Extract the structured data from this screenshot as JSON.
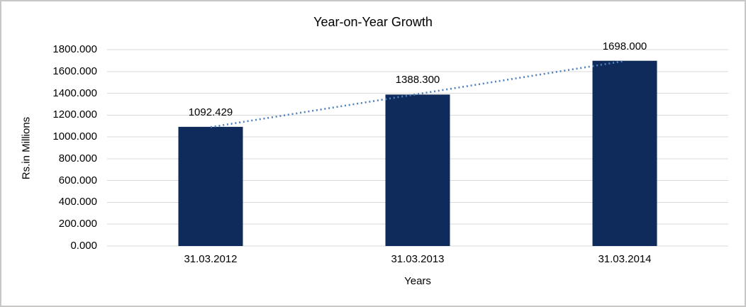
{
  "chart_data": {
    "type": "bar",
    "title": "Year-on-Year Growth",
    "xlabel": "Years",
    "ylabel": "Rs.in Millions",
    "categories": [
      "31.03.2012",
      "31.03.2013",
      "31.03.2014"
    ],
    "values": [
      1092.429,
      1388.3,
      1698.0
    ],
    "value_labels": [
      "1092.429",
      "1388.300",
      "1698.000"
    ],
    "ylim": [
      0,
      1800
    ],
    "y_tick_step": 200,
    "y_tick_labels": [
      "0.000",
      "200.000",
      "400.000",
      "600.000",
      "800.000",
      "1000.000",
      "1200.000",
      "1400.000",
      "1600.000",
      "1800.000"
    ],
    "grid": true,
    "legend": "none",
    "bar_color": "#0f2b5b",
    "gridline_color": "#d9d9d9",
    "trendline": {
      "type": "linear",
      "style": "dotted",
      "color": "#4f81bd"
    }
  }
}
